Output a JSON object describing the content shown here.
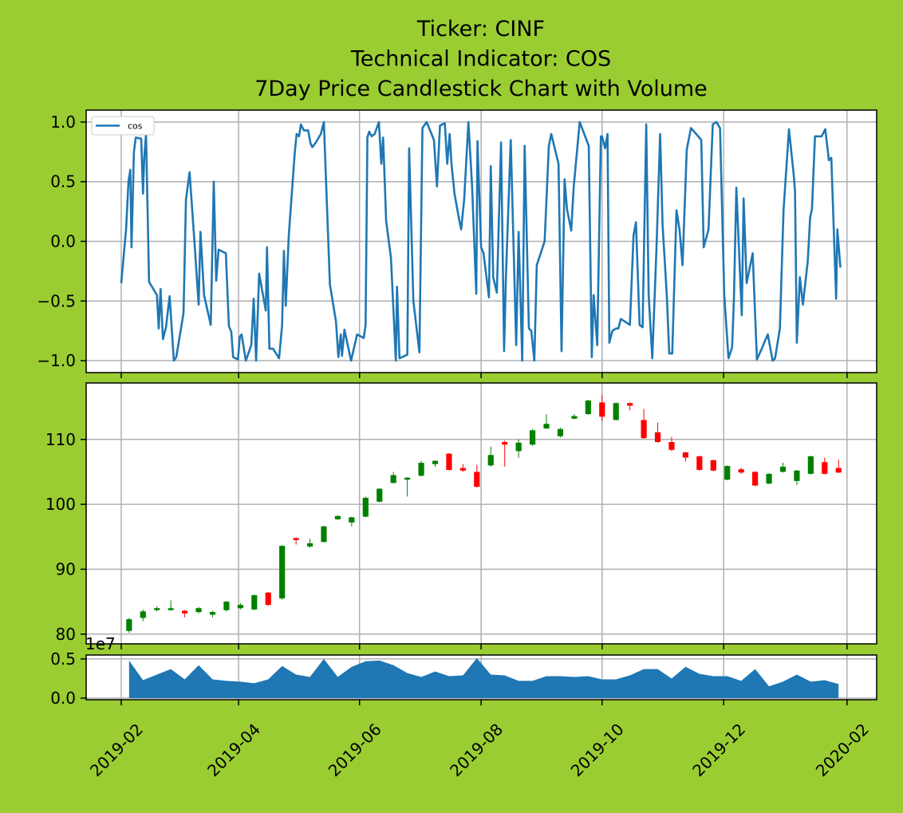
{
  "chart_data": [
    {
      "type": "line",
      "title": [
        "Ticker: CINF",
        "Technical Indicator: COS",
        "7Day Price Candlestick Chart with Volume"
      ],
      "xlim": [
        0.42,
        13.49
      ],
      "xticks": [
        1,
        2.94,
        4.94,
        6.95,
        8.95,
        10.96,
        13.0
      ],
      "ylim": [
        -1.1,
        1.1
      ],
      "yticks": [
        {
          "value": -1,
          "label": "−1.0"
        },
        {
          "value": -0.5,
          "label": "−0.5"
        },
        {
          "value": 0,
          "label": "0.0"
        },
        {
          "value": 0.5,
          "label": "0.5"
        },
        {
          "value": 1,
          "label": "1.0"
        }
      ],
      "grid": true,
      "legend": "upper left",
      "x": [
        1.0,
        1.08,
        1.12,
        1.15,
        1.17,
        1.21,
        1.24,
        1.33,
        1.36,
        1.38,
        1.41,
        1.46,
        1.59,
        1.62,
        1.65,
        1.69,
        1.74,
        1.8,
        1.87,
        1.91,
        2.03,
        2.07,
        2.13,
        2.21,
        2.28,
        2.31,
        2.37,
        2.48,
        2.53,
        2.57,
        2.61,
        2.73,
        2.78,
        2.82,
        2.85,
        2.93,
        2.96,
        2.99,
        3.06,
        3.15,
        3.19,
        3.23,
        3.28,
        3.39,
        3.41,
        3.45,
        3.51,
        3.61,
        3.66,
        3.69,
        3.72,
        3.77,
        3.87,
        3.9,
        3.94,
        3.97,
        4.02,
        4.09,
        4.13,
        4.16,
        4.22,
        4.3,
        4.35,
        4.45,
        4.55,
        4.59,
        4.63,
        4.65,
        4.69,
        4.8,
        4.9,
        5.01,
        5.04,
        5.07,
        5.1,
        5.14,
        5.19,
        5.26,
        5.3,
        5.33,
        5.38,
        5.46,
        5.54,
        5.56,
        5.6,
        5.73,
        5.76,
        5.83,
        5.93,
        5.98,
        6.05,
        6.17,
        6.22,
        6.27,
        6.35,
        6.39,
        6.43,
        6.46,
        6.51,
        6.58,
        6.62,
        6.67,
        6.74,
        6.8,
        6.87,
        6.89,
        6.95,
        6.99,
        7.08,
        7.11,
        7.15,
        7.21,
        7.28,
        7.33,
        7.36,
        7.44,
        7.53,
        7.57,
        7.63,
        7.67,
        7.74,
        7.78,
        7.83,
        7.87,
        8.0,
        8.07,
        8.11,
        8.23,
        8.28,
        8.33,
        8.37,
        8.44,
        8.48,
        8.58,
        8.73,
        8.78,
        8.81,
        8.87,
        8.93,
        8.95,
        9.0,
        9.04,
        9.07,
        9.12,
        9.18,
        9.22,
        9.26,
        9.41,
        9.47,
        9.51,
        9.57,
        9.62,
        9.68,
        9.72,
        9.78,
        9.85,
        9.91,
        9.95,
        10.02,
        10.06,
        10.11,
        10.18,
        10.23,
        10.28,
        10.35,
        10.42,
        10.59,
        10.63,
        10.71,
        10.78,
        10.84,
        10.9,
        10.97,
        11.04,
        11.1,
        11.13,
        11.17,
        11.26,
        11.29,
        11.34,
        11.38,
        11.44,
        11.51,
        11.59,
        11.63,
        11.69,
        11.77,
        11.81,
        11.89,
        11.95,
        12.04,
        12.12,
        12.14,
        12.17,
        12.22,
        12.27,
        12.35,
        12.39,
        12.42,
        12.47,
        12.58,
        12.64,
        12.7,
        12.74,
        12.82,
        12.84,
        12.89
      ],
      "series": [
        {
          "name": "cos",
          "color": "#1f77b4",
          "values": [
            -0.35,
            0.1,
            0.5,
            0.6,
            -0.05,
            0.75,
            0.87,
            0.86,
            0.4,
            0.7,
            0.9,
            -0.34,
            -0.45,
            -0.73,
            -0.4,
            -0.82,
            -0.72,
            -0.46,
            -1.0,
            -0.97,
            -0.6,
            0.35,
            0.58,
            0.0,
            -0.53,
            0.08,
            -0.45,
            -0.7,
            0.5,
            -0.33,
            -0.07,
            -0.1,
            -0.71,
            -0.76,
            -0.97,
            -0.99,
            -0.8,
            -0.78,
            -1.0,
            -0.87,
            -0.48,
            -1.0,
            -0.27,
            -0.58,
            -0.05,
            -0.9,
            -0.9,
            -0.98,
            -0.7,
            -0.08,
            -0.54,
            0.05,
            0.75,
            0.9,
            0.88,
            0.98,
            0.93,
            0.93,
            0.82,
            0.79,
            0.83,
            0.9,
            1.0,
            -0.36,
            -0.67,
            -0.97,
            -0.78,
            -0.96,
            -0.74,
            -1.0,
            -0.78,
            -0.81,
            -0.7,
            0.87,
            0.92,
            0.88,
            0.9,
            1.0,
            0.65,
            0.87,
            0.17,
            -0.14,
            -1.0,
            -0.38,
            -0.98,
            -0.95,
            0.78,
            -0.5,
            -0.93,
            0.95,
            1.0,
            0.85,
            0.46,
            0.97,
            0.99,
            0.65,
            0.9,
            0.65,
            0.4,
            0.2,
            0.1,
            0.35,
            1.0,
            0.47,
            -0.44,
            0.84,
            -0.05,
            -0.1,
            -0.47,
            0.63,
            -0.3,
            -0.43,
            0.83,
            -0.92,
            -0.3,
            0.85,
            -0.87,
            0.08,
            -1.0,
            0.8,
            -0.73,
            -0.75,
            -1.0,
            -0.2,
            0.0,
            0.8,
            0.9,
            0.65,
            -0.92,
            0.52,
            0.27,
            0.09,
            0.45,
            1.0,
            0.8,
            -0.97,
            -0.45,
            -0.87,
            0.88,
            0.88,
            0.78,
            0.9,
            -0.85,
            -0.75,
            -0.73,
            -0.73,
            -0.65,
            -0.7,
            0.05,
            0.16,
            -0.7,
            -0.72,
            0.98,
            -0.45,
            -0.98,
            -0.05,
            0.9,
            0.14,
            -0.45,
            -0.94,
            -0.94,
            0.26,
            0.1,
            -0.2,
            0.77,
            0.95,
            0.85,
            -0.05,
            0.1,
            0.98,
            1.0,
            0.95,
            -0.45,
            -0.98,
            -0.89,
            -0.48,
            0.45,
            -0.62,
            0.36,
            -0.35,
            -0.25,
            -0.1,
            -0.99,
            -0.9,
            -0.85,
            -0.78,
            -1.0,
            -0.98,
            -0.73,
            0.26,
            0.94,
            0.55,
            0.42,
            -0.85,
            -0.3,
            -0.53,
            -0.17,
            0.2,
            0.27,
            0.88,
            0.88,
            0.94,
            0.68,
            0.7,
            -0.48,
            0.1,
            -0.22
          ]
        }
      ]
    },
    {
      "type": "candlestick",
      "xlim": [
        0.42,
        13.49
      ],
      "xticks": [
        1,
        2.94,
        4.94,
        6.95,
        8.95,
        10.96,
        13.0
      ],
      "ylim": [
        78.5,
        118.7
      ],
      "yticks": [
        80,
        90,
        100,
        110
      ],
      "grid": true,
      "up_color": "green",
      "down_color": "red",
      "x": [
        1.13,
        1.36,
        1.59,
        1.82,
        2.05,
        2.28,
        2.51,
        2.74,
        2.97,
        3.2,
        3.43,
        3.66,
        3.89,
        4.12,
        4.35,
        4.58,
        4.81,
        5.04,
        5.27,
        5.5,
        5.73,
        5.96,
        6.19,
        6.42,
        6.65,
        6.88,
        7.11,
        7.34,
        7.57,
        7.8,
        8.03,
        8.26,
        8.49,
        8.72,
        8.95,
        9.18,
        9.41,
        9.64,
        9.87,
        10.1,
        10.33,
        10.56,
        10.79,
        11.02,
        11.25,
        11.48,
        11.71,
        11.94,
        12.17,
        12.4,
        12.63,
        12.86
      ],
      "open": [
        80.5,
        82.5,
        83.7,
        83.7,
        83.6,
        83.4,
        83.0,
        83.7,
        84.0,
        83.8,
        86.4,
        85.5,
        94.8,
        93.5,
        94.2,
        97.7,
        97.2,
        98.1,
        100.4,
        103.3,
        103.8,
        104.4,
        106.2,
        107.8,
        105.6,
        105.0,
        106.0,
        109.6,
        108.2,
        109.2,
        111.7,
        110.5,
        113.2,
        113.9,
        115.7,
        113.0,
        115.6,
        113.0,
        111.1,
        109.6,
        108.0,
        107.4,
        106.8,
        103.8,
        105.4,
        105.0,
        103.2,
        105.0,
        103.6,
        104.7,
        106.5,
        105.6
      ],
      "high": [
        82.5,
        83.8,
        84.3,
        85.2,
        83.7,
        84.2,
        83.6,
        85.1,
        84.8,
        86.1,
        86.5,
        93.7,
        94.9,
        94.7,
        96.7,
        98.3,
        98.1,
        101.2,
        102.5,
        105.0,
        104.2,
        106.7,
        106.8,
        107.9,
        106.2,
        106.1,
        108.9,
        109.8,
        110.0,
        111.6,
        113.9,
        111.8,
        113.9,
        116.1,
        116.8,
        115.7,
        115.7,
        114.7,
        112.6,
        110.4,
        108.1,
        107.5,
        106.9,
        106.0,
        105.6,
        105.1,
        104.8,
        106.4,
        105.3,
        107.5,
        107.2,
        106.9
      ],
      "low": [
        80.2,
        82.0,
        83.5,
        83.6,
        82.6,
        83.2,
        82.6,
        83.5,
        83.8,
        83.7,
        84.4,
        85.3,
        93.8,
        93.3,
        94.1,
        97.6,
        96.6,
        98.0,
        100.3,
        103.2,
        101.2,
        104.3,
        105.8,
        105.2,
        105.0,
        102.6,
        105.8,
        105.8,
        107.2,
        109.0,
        111.6,
        110.3,
        113.1,
        113.8,
        112.8,
        112.9,
        114.5,
        110.1,
        109.5,
        108.2,
        106.6,
        105.2,
        105.1,
        103.7,
        104.7,
        102.8,
        103.1,
        104.9,
        103.0,
        104.6,
        104.6,
        104.8
      ],
      "close": [
        82.3,
        83.5,
        84.0,
        84.0,
        83.2,
        84.0,
        83.4,
        85.0,
        84.5,
        86.0,
        84.5,
        93.6,
        94.5,
        94.0,
        96.6,
        98.2,
        98.0,
        101.0,
        102.4,
        104.5,
        104.1,
        106.4,
        106.7,
        105.3,
        105.2,
        102.7,
        107.6,
        109.2,
        109.5,
        111.4,
        112.4,
        111.6,
        113.6,
        116.0,
        113.5,
        115.6,
        115.2,
        110.2,
        109.6,
        108.4,
        107.2,
        105.3,
        105.2,
        105.9,
        104.9,
        102.9,
        104.7,
        105.8,
        105.2,
        107.4,
        104.7,
        104.9
      ]
    },
    {
      "type": "area",
      "xlim": [
        0.42,
        13.49
      ],
      "xticks": [
        {
          "value": 1,
          "label": "2019-02"
        },
        {
          "value": 2.94,
          "label": "2019-04"
        },
        {
          "value": 4.94,
          "label": "2019-06"
        },
        {
          "value": 6.95,
          "label": "2019-08"
        },
        {
          "value": 8.95,
          "label": "2019-10"
        },
        {
          "value": 10.96,
          "label": "2019-12"
        },
        {
          "value": 13.0,
          "label": "2020-02"
        }
      ],
      "ylim": [
        -0.02,
        0.55
      ],
      "yticks": [
        {
          "value": 0,
          "label": "0.0"
        },
        {
          "value": 0.5,
          "label": "0.5"
        }
      ],
      "offset_label": "1e7",
      "grid": true,
      "color": "#1f77b4",
      "x": [
        1.13,
        1.36,
        1.59,
        1.82,
        2.05,
        2.28,
        2.51,
        2.74,
        2.97,
        3.2,
        3.43,
        3.66,
        3.89,
        4.12,
        4.35,
        4.58,
        4.81,
        5.04,
        5.27,
        5.5,
        5.73,
        5.96,
        6.19,
        6.42,
        6.65,
        6.88,
        7.11,
        7.34,
        7.57,
        7.8,
        8.03,
        8.26,
        8.49,
        8.72,
        8.95,
        9.18,
        9.41,
        9.64,
        9.87,
        10.1,
        10.33,
        10.56,
        10.79,
        11.02,
        11.25,
        11.48,
        11.71,
        11.94,
        12.17,
        12.4,
        12.63,
        12.86
      ],
      "values": [
        0.48,
        0.23,
        0.3,
        0.37,
        0.24,
        0.42,
        0.24,
        0.22,
        0.21,
        0.19,
        0.24,
        0.41,
        0.3,
        0.27,
        0.5,
        0.27,
        0.4,
        0.47,
        0.48,
        0.42,
        0.32,
        0.27,
        0.34,
        0.28,
        0.29,
        0.51,
        0.3,
        0.29,
        0.22,
        0.22,
        0.28,
        0.28,
        0.27,
        0.28,
        0.24,
        0.24,
        0.29,
        0.37,
        0.37,
        0.25,
        0.4,
        0.31,
        0.28,
        0.28,
        0.22,
        0.37,
        0.15,
        0.21,
        0.3,
        0.21,
        0.23,
        0.18
      ]
    }
  ]
}
